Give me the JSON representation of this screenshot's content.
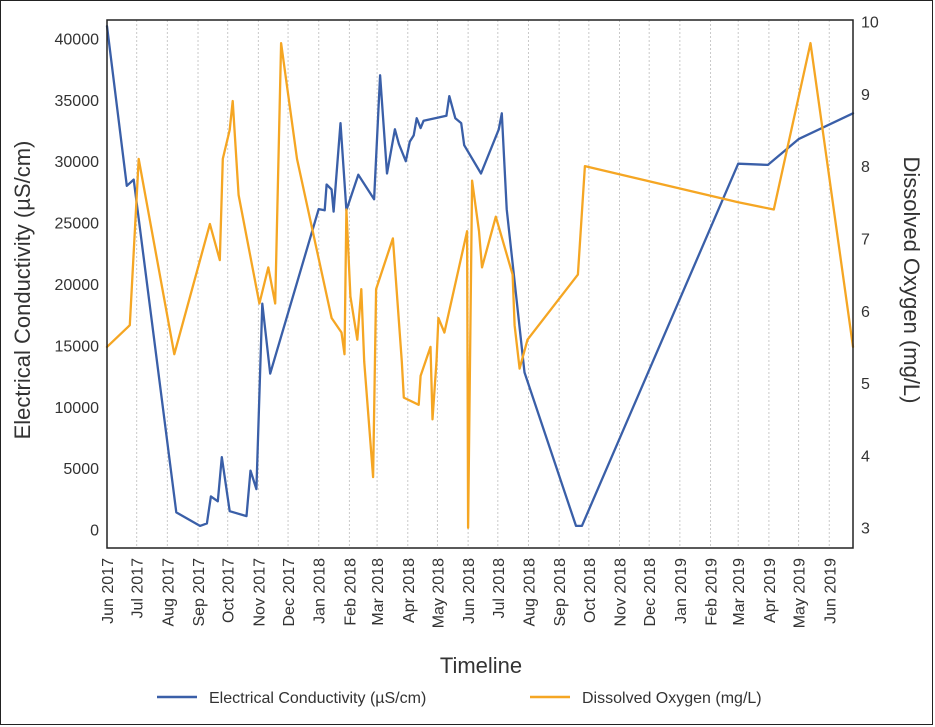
{
  "chart_data": {
    "type": "line",
    "xlabel": "Timeline",
    "ylabel_left": "Electrical Conductivity (µS/cm)",
    "ylabel_right": "Dissolved Oxygen (mg/L)",
    "x_ticks": [
      "Jun 2017",
      "Jul 2017",
      "Aug 2017",
      "Sep 2017",
      "Oct 2017",
      "Nov 2017",
      "Dec 2017",
      "Jan 2018",
      "Feb 2018",
      "Mar 2018",
      "Apr 2018",
      "May 2018",
      "Jun 2018",
      "Jul 2018",
      "Aug 2018",
      "Sep 2018",
      "Oct 2018",
      "Nov 2018",
      "Dec 2018",
      "Jan 2019",
      "Feb 2019",
      "Mar 2019",
      "Apr 2019",
      "May 2019",
      "Jun 2019"
    ],
    "x_range": [
      "2017-06-01",
      "2019-06-25"
    ],
    "y_left_ticks": [
      0,
      5000,
      10000,
      15000,
      20000,
      25000,
      30000,
      35000,
      40000
    ],
    "y_left_range": [
      -1500,
      41500
    ],
    "y_right_ticks": [
      3,
      4,
      5,
      6,
      7,
      8,
      9,
      10
    ],
    "y_right_range": [
      2.72,
      10.02
    ],
    "grid": "vertical-dotted",
    "legend_position": "bottom",
    "series": [
      {
        "name": "Electrical Conductivity (µS/cm)",
        "axis": "left",
        "color": "#3a5fa8",
        "points": [
          [
            "2017-06-01",
            41000
          ],
          [
            "2017-06-21",
            28000
          ],
          [
            "2017-06-28",
            28500
          ],
          [
            "2017-08-10",
            1400
          ],
          [
            "2017-09-03",
            300
          ],
          [
            "2017-09-10",
            500
          ],
          [
            "2017-09-14",
            2700
          ],
          [
            "2017-09-21",
            2300
          ],
          [
            "2017-09-25",
            5900
          ],
          [
            "2017-10-03",
            1500
          ],
          [
            "2017-10-20",
            1100
          ],
          [
            "2017-10-24",
            4800
          ],
          [
            "2017-10-30",
            3300
          ],
          [
            "2017-11-05",
            18400
          ],
          [
            "2017-11-13",
            12700
          ],
          [
            "2018-01-01",
            26100
          ],
          [
            "2018-01-07",
            26000
          ],
          [
            "2018-01-09",
            28100
          ],
          [
            "2018-01-14",
            27700
          ],
          [
            "2018-01-16",
            25900
          ],
          [
            "2018-01-23",
            33100
          ],
          [
            "2018-01-29",
            26000
          ],
          [
            "2018-02-10",
            28900
          ],
          [
            "2018-02-26",
            26900
          ],
          [
            "2018-03-04",
            37000
          ],
          [
            "2018-03-11",
            29000
          ],
          [
            "2018-03-19",
            32600
          ],
          [
            "2018-03-23",
            31400
          ],
          [
            "2018-03-30",
            30000
          ],
          [
            "2018-04-03",
            31600
          ],
          [
            "2018-04-07",
            32100
          ],
          [
            "2018-04-10",
            33500
          ],
          [
            "2018-04-14",
            32700
          ],
          [
            "2018-04-17",
            33300
          ],
          [
            "2018-05-10",
            33700
          ],
          [
            "2018-05-13",
            35300
          ],
          [
            "2018-05-19",
            33500
          ],
          [
            "2018-05-25",
            33100
          ],
          [
            "2018-05-28",
            31300
          ],
          [
            "2018-06-14",
            29000
          ],
          [
            "2018-07-02",
            32600
          ],
          [
            "2018-07-05",
            33900
          ],
          [
            "2018-07-10",
            26100
          ],
          [
            "2018-07-28",
            12800
          ],
          [
            "2018-09-18",
            300
          ],
          [
            "2018-09-24",
            300
          ],
          [
            "2019-03-01",
            29800
          ],
          [
            "2019-03-31",
            29700
          ],
          [
            "2019-05-01",
            31800
          ],
          [
            "2019-06-25",
            33900
          ]
        ]
      },
      {
        "name": "Dissolved Oxygen (mg/L)",
        "axis": "right",
        "color": "#f5a623",
        "points": [
          [
            "2017-06-01",
            5.5
          ],
          [
            "2017-06-24",
            5.8
          ],
          [
            "2017-07-03",
            8.1
          ],
          [
            "2017-08-08",
            5.4
          ],
          [
            "2017-09-13",
            7.2
          ],
          [
            "2017-09-23",
            6.7
          ],
          [
            "2017-09-26",
            8.1
          ],
          [
            "2017-10-03",
            8.5
          ],
          [
            "2017-10-06",
            8.9
          ],
          [
            "2017-10-12",
            7.6
          ],
          [
            "2017-11-02",
            6.1
          ],
          [
            "2017-11-11",
            6.6
          ],
          [
            "2017-11-18",
            6.1
          ],
          [
            "2017-11-24",
            9.7
          ],
          [
            "2017-12-10",
            8.1
          ],
          [
            "2018-01-14",
            5.9
          ],
          [
            "2018-01-24",
            5.7
          ],
          [
            "2018-01-27",
            5.4
          ],
          [
            "2018-01-29",
            7.4
          ],
          [
            "2018-02-02",
            6.2
          ],
          [
            "2018-02-09",
            5.6
          ],
          [
            "2018-02-13",
            6.3
          ],
          [
            "2018-02-16",
            5.3
          ],
          [
            "2018-02-25",
            3.7
          ],
          [
            "2018-02-28",
            6.3
          ],
          [
            "2018-03-17",
            7.0
          ],
          [
            "2018-03-26",
            5.3
          ],
          [
            "2018-03-28",
            4.8
          ],
          [
            "2018-04-12",
            4.7
          ],
          [
            "2018-04-14",
            5.1
          ],
          [
            "2018-04-24",
            5.5
          ],
          [
            "2018-04-26",
            4.5
          ],
          [
            "2018-04-30",
            5.3
          ],
          [
            "2018-05-02",
            5.9
          ],
          [
            "2018-05-08",
            5.7
          ],
          [
            "2018-05-31",
            7.1
          ],
          [
            "2018-06-01",
            3.0
          ],
          [
            "2018-06-05",
            7.8
          ],
          [
            "2018-06-12",
            7.1
          ],
          [
            "2018-06-15",
            6.6
          ],
          [
            "2018-06-29",
            7.3
          ],
          [
            "2018-07-16",
            6.5
          ],
          [
            "2018-07-18",
            5.8
          ],
          [
            "2018-07-23",
            5.2
          ],
          [
            "2018-07-31",
            5.6
          ],
          [
            "2018-09-20",
            6.5
          ],
          [
            "2018-09-27",
            8.0
          ],
          [
            "2019-03-01",
            7.5
          ],
          [
            "2019-04-06",
            7.4
          ],
          [
            "2019-05-13",
            9.7
          ],
          [
            "2019-06-25",
            5.5
          ]
        ]
      }
    ]
  }
}
